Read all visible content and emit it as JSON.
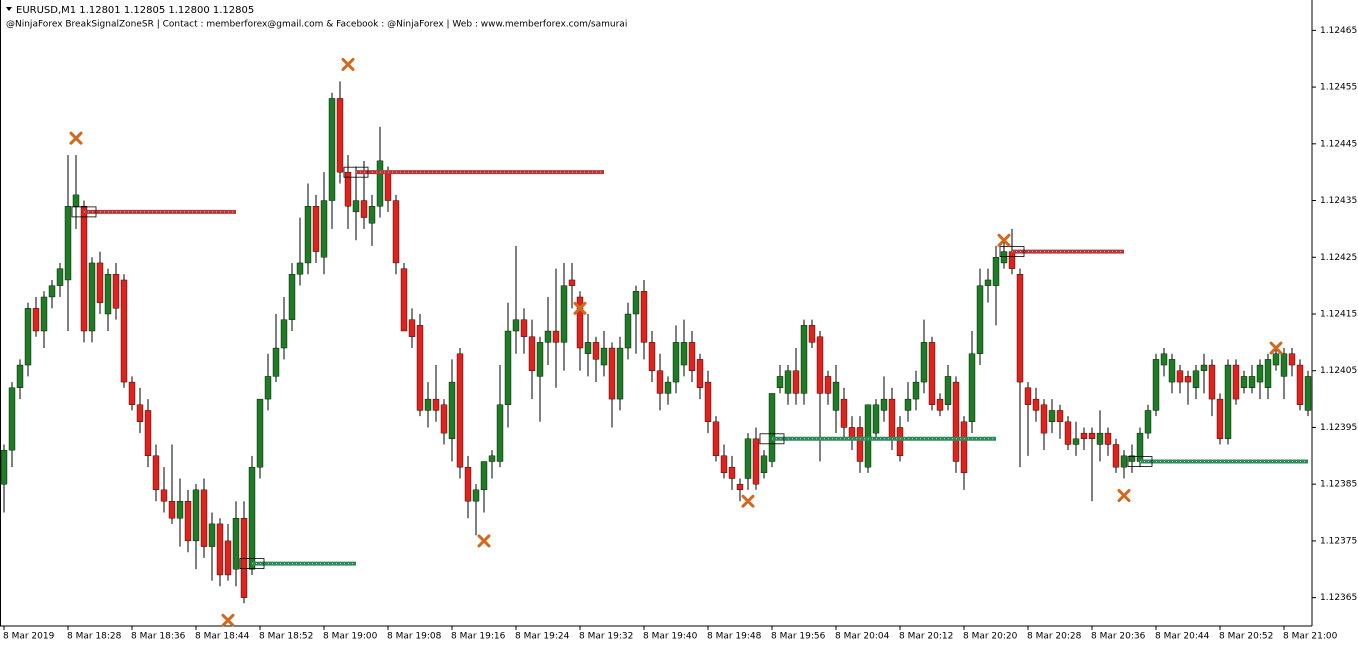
{
  "chart_data": {
    "type": "candlestick",
    "title": "EURUSD,M1  1.12801 1.12805 1.12800 1.12805",
    "subtitle": "@NinjaForex BreakSignalZoneSR | Contact : memberforex@gmail.com & Facebook : @NinjaForex | Web : www.memberforex.com/samurai",
    "categories": [
      "8 Mar 2019",
      null,
      null,
      null,
      null,
      null,
      null,
      null,
      "8 Mar 18:28",
      null,
      null,
      null,
      null,
      null,
      null,
      null,
      "8 Mar 18:36",
      null,
      null,
      null,
      null,
      null,
      null,
      null,
      "8 Mar 18:44",
      null,
      null,
      null,
      null,
      null,
      null,
      null,
      "8 Mar 18:52",
      null,
      null,
      null,
      null,
      null,
      null,
      null,
      "8 Mar 19:00",
      null,
      null,
      null,
      null,
      null,
      null,
      null,
      "8 Mar 19:08",
      null,
      null,
      null,
      null,
      null,
      null,
      null,
      "8 Mar 19:16",
      null,
      null,
      null,
      null,
      null,
      null,
      null,
      "8 Mar 19:24",
      null,
      null,
      null,
      null,
      null,
      null,
      null,
      "8 Mar 19:32",
      null,
      null,
      null,
      null,
      null,
      null,
      null,
      "8 Mar 19:40",
      null,
      null,
      null,
      null,
      null,
      null,
      null,
      "8 Mar 19:48",
      null,
      null,
      null,
      null,
      null,
      null,
      null,
      "8 Mar 19:56",
      null,
      null,
      null,
      null,
      null,
      null,
      null,
      "8 Mar 20:04",
      null,
      null,
      null,
      null,
      null,
      null,
      null,
      "8 Mar 20:12",
      null,
      null,
      null,
      null,
      null,
      null,
      null,
      "8 Mar 20:20",
      null,
      null,
      null,
      null,
      null,
      null,
      null,
      "8 Mar 20:28",
      null,
      null,
      null,
      null,
      null,
      null,
      null,
      "8 Mar 20:36",
      null,
      null,
      null,
      null,
      null,
      null,
      null,
      "8 Mar 20:44",
      null,
      null,
      null,
      null,
      null,
      null,
      null,
      "8 Mar 20:52",
      null,
      null,
      null,
      null,
      null,
      null,
      null,
      "8 Mar 21:00",
      null,
      null,
      null
    ],
    "open": [
      1.12385,
      1.12391,
      1.12402,
      1.12406,
      1.12416,
      1.12412,
      1.12418,
      1.1242,
      1.12421,
      1.12434,
      1.12434,
      1.12412,
      1.12424,
      1.12415,
      1.12422,
      1.12421,
      1.12403,
      1.12399,
      1.12398,
      1.1239,
      1.12384,
      1.12382,
      1.12379,
      1.12382,
      1.12375,
      1.12384,
      1.12374,
      1.12378,
      1.12375,
      1.1237,
      1.12379,
      1.1237,
      1.12388,
      1.124,
      1.12404,
      1.12409,
      1.12414,
      1.12422,
      1.12424,
      1.12434,
      1.12425,
      1.12435,
      1.12453,
      1.1244,
      1.12433,
      1.12435,
      1.12431,
      1.12434,
      1.1244,
      1.12435,
      1.12423,
      1.12414,
      1.12413,
      1.12398,
      1.124,
      1.12399,
      1.12393,
      1.12408,
      1.12388,
      1.12382,
      1.12384,
      1.12389,
      1.12389,
      1.12399,
      1.12412,
      1.12414,
      1.12411,
      1.12404,
      1.1241,
      1.12412,
      1.1241,
      1.12421,
      1.12418,
      1.12408,
      1.1241,
      1.12406,
      1.12409,
      1.124,
      1.12409,
      1.12415,
      1.12419,
      1.1241,
      1.12405,
      1.12401,
      1.12403,
      1.12406,
      1.1241,
      1.12407,
      1.12403,
      1.12396,
      1.1239,
      1.12388,
      1.12385,
      1.12386,
      1.12393,
      1.12387,
      1.12389,
      1.12402,
      1.12401,
      1.12405,
      1.12401,
      1.12413,
      1.12411,
      1.12404,
      1.12398,
      1.124,
      1.12395,
      1.12395,
      1.12388,
      1.12394,
      1.12398,
      1.124,
      1.12395,
      1.12398,
      1.124,
      1.12403,
      1.1241,
      1.124,
      1.12399,
      1.12403,
      1.12396,
      1.12396,
      1.12408,
      1.1242,
      1.1242,
      1.12424,
      1.12426,
      1.12422,
      1.12402,
      1.124,
      1.12399,
      1.12396,
      1.12398,
      1.12396,
      1.12392,
      1.12394,
      1.12394,
      1.12392,
      1.12394,
      1.12392,
      1.12388,
      1.12389,
      1.12389,
      1.12394,
      1.12398,
      1.12406,
      1.12403,
      1.12405,
      1.12404,
      1.12402,
      1.12405,
      1.12406,
      1.124,
      1.12393,
      1.12406,
      1.12402,
      1.12402,
      1.12403,
      1.12402,
      1.12406,
      1.12404,
      1.12408,
      1.12406,
      1.12398
    ],
    "high": [
      1.12392,
      1.12403,
      1.12407,
      1.12417,
      1.12418,
      1.12419,
      1.12421,
      1.12424,
      1.12443,
      1.12443,
      1.12435,
      1.12425,
      1.12426,
      1.12423,
      1.12424,
      1.12422,
      1.12404,
      1.12402,
      1.124,
      1.12392,
      1.12388,
      1.12392,
      1.12386,
      1.12384,
      1.12385,
      1.12386,
      1.1238,
      1.12379,
      1.12378,
      1.12382,
      1.12382,
      1.1239,
      1.124,
      1.12408,
      1.12415,
      1.12418,
      1.12424,
      1.12432,
      1.12438,
      1.12436,
      1.1244,
      1.12454,
      1.12456,
      1.12443,
      1.12441,
      1.12442,
      1.12436,
      1.12448,
      1.12441,
      1.12436,
      1.12424,
      1.12416,
      1.12415,
      1.12403,
      1.12406,
      1.124,
      1.12407,
      1.12409,
      1.1239,
      1.12385,
      1.12389,
      1.12391,
      1.12406,
      1.12417,
      1.12427,
      1.12416,
      1.12414,
      1.12411,
      1.12418,
      1.12423,
      1.12424,
      1.12424,
      1.12419,
      1.12415,
      1.12411,
      1.12412,
      1.1241,
      1.12411,
      1.12417,
      1.1242,
      1.12421,
      1.12412,
      1.12408,
      1.12404,
      1.12413,
      1.12414,
      1.12412,
      1.12408,
      1.12405,
      1.12397,
      1.12392,
      1.1239,
      1.12386,
      1.12394,
      1.12395,
      1.12391,
      1.12401,
      1.12406,
      1.12406,
      1.12409,
      1.12414,
      1.12414,
      1.12412,
      1.12405,
      1.12406,
      1.12402,
      1.12397,
      1.12397,
      1.12399,
      1.124,
      1.12404,
      1.12402,
      1.12397,
      1.12403,
      1.12405,
      1.12414,
      1.12411,
      1.12401,
      1.12406,
      1.12404,
      1.12397,
      1.12412,
      1.12423,
      1.12423,
      1.12427,
      1.12428,
      1.1243,
      1.12423,
      1.12403,
      1.12402,
      1.124,
      1.124,
      1.12399,
      1.12397,
      1.12396,
      1.12395,
      1.12395,
      1.12398,
      1.12395,
      1.12393,
      1.12391,
      1.12392,
      1.12395,
      1.12399,
      1.12408,
      1.12409,
      1.12408,
      1.12406,
      1.12405,
      1.12406,
      1.12408,
      1.12407,
      1.12401,
      1.12407,
      1.12407,
      1.12405,
      1.12406,
      1.12407,
      1.12408,
      1.12409,
      1.12409,
      1.12409,
      1.12407,
      1.12405
    ],
    "low": [
      1.1238,
      1.12388,
      1.124,
      1.12404,
      1.12411,
      1.12409,
      1.12416,
      1.12418,
      1.12412,
      1.1243,
      1.1241,
      1.1241,
      1.12415,
      1.12412,
      1.12414,
      1.12402,
      1.12398,
      1.12394,
      1.12388,
      1.12382,
      1.1238,
      1.12378,
      1.12374,
      1.12373,
      1.1237,
      1.12372,
      1.12368,
      1.12367,
      1.12368,
      1.12367,
      1.12364,
      1.12369,
      1.12386,
      1.12398,
      1.12403,
      1.12407,
      1.12412,
      1.1242,
      1.12422,
      1.12424,
      1.12422,
      1.1243,
      1.12438,
      1.1243,
      1.12428,
      1.1243,
      1.12427,
      1.12432,
      1.12433,
      1.12422,
      1.12412,
      1.12409,
      1.12397,
      1.12395,
      1.12396,
      1.12392,
      1.12389,
      1.12386,
      1.12379,
      1.12376,
      1.1238,
      1.12386,
      1.12388,
      1.12395,
      1.12408,
      1.12408,
      1.124,
      1.12396,
      1.12406,
      1.12402,
      1.12405,
      1.12416,
      1.12405,
      1.12404,
      1.12403,
      1.12404,
      1.12395,
      1.12398,
      1.12407,
      1.12408,
      1.12407,
      1.12403,
      1.12398,
      1.12399,
      1.12401,
      1.12404,
      1.12403,
      1.124,
      1.12394,
      1.12389,
      1.12386,
      1.12384,
      1.12382,
      1.12384,
      1.12384,
      1.12386,
      1.12388,
      1.12401,
      1.12399,
      1.12399,
      1.12399,
      1.12409,
      1.12389,
      1.12399,
      1.12394,
      1.12393,
      1.12391,
      1.12387,
      1.12387,
      1.12393,
      1.12396,
      1.12391,
      1.12389,
      1.12396,
      1.12398,
      1.12401,
      1.12398,
      1.12397,
      1.12398,
      1.12387,
      1.12384,
      1.12394,
      1.12406,
      1.12417,
      1.12413,
      1.12423,
      1.12422,
      1.12388,
      1.1239,
      1.12396,
      1.12391,
      1.12394,
      1.12393,
      1.12391,
      1.1239,
      1.12391,
      1.12382,
      1.12389,
      1.1239,
      1.12387,
      1.12386,
      1.12387,
      1.12388,
      1.12393,
      1.12397,
      1.12404,
      1.12401,
      1.12401,
      1.12399,
      1.124,
      1.12401,
      1.12397,
      1.12392,
      1.12392,
      1.12399,
      1.12401,
      1.12401,
      1.124,
      1.124,
      1.12405,
      1.124,
      1.12404,
      1.12398,
      1.12397
    ],
    "close": [
      1.12391,
      1.12402,
      1.12406,
      1.12416,
      1.12412,
      1.12418,
      1.1242,
      1.12423,
      1.12434,
      1.12436,
      1.12412,
      1.12424,
      1.12417,
      1.12422,
      1.12416,
      1.12403,
      1.12399,
      1.12396,
      1.1239,
      1.12384,
      1.12382,
      1.12379,
      1.12382,
      1.12375,
      1.12384,
      1.12374,
      1.12378,
      1.12369,
      1.12369,
      1.12379,
      1.12365,
      1.12388,
      1.124,
      1.12404,
      1.12409,
      1.12414,
      1.12422,
      1.12424,
      1.12434,
      1.12426,
      1.12435,
      1.12453,
      1.1244,
      1.12434,
      1.12435,
      1.12432,
      1.12434,
      1.12442,
      1.12435,
      1.12424,
      1.12412,
      1.12411,
      1.12398,
      1.124,
      1.12398,
      1.12394,
      1.12403,
      1.12388,
      1.12382,
      1.12384,
      1.12389,
      1.1239,
      1.12399,
      1.12412,
      1.12414,
      1.12411,
      1.12405,
      1.1241,
      1.12412,
      1.1241,
      1.1242,
      1.1242,
      1.12409,
      1.1241,
      1.12407,
      1.12409,
      1.124,
      1.12409,
      1.12415,
      1.12419,
      1.1241,
      1.12405,
      1.12401,
      1.12403,
      1.1241,
      1.1241,
      1.12405,
      1.12402,
      1.12396,
      1.1239,
      1.12387,
      1.12386,
      1.12384,
      1.12393,
      1.12385,
      1.1239,
      1.12401,
      1.12404,
      1.12405,
      1.12401,
      1.12413,
      1.1241,
      1.12401,
      1.12401,
      1.12403,
      1.12395,
      1.12393,
      1.12389,
      1.12399,
      1.12399,
      1.124,
      1.12393,
      1.1239,
      1.124,
      1.12403,
      1.1241,
      1.12399,
      1.12398,
      1.12404,
      1.12389,
      1.12387,
      1.12408,
      1.1242,
      1.12421,
      1.12425,
      1.12426,
      1.12423,
      1.12403,
      1.12399,
      1.12398,
      1.12394,
      1.12398,
      1.12396,
      1.12392,
      1.12393,
      1.12393,
      1.12393,
      1.12394,
      1.12392,
      1.12388,
      1.1239,
      1.1239,
      1.12394,
      1.12398,
      1.12407,
      1.12408,
      1.12407,
      1.12403,
      1.12403,
      1.12405,
      1.12406,
      1.124,
      1.12393,
      1.12406,
      1.124,
      1.12404,
      1.12404,
      1.12406,
      1.12407,
      1.12408,
      1.12408,
      1.12406,
      1.12399,
      1.12404
    ],
    "up_color": "#1c7d23",
    "down_color": "#e0211c",
    "ylim": [
      1.1236,
      1.1247
    ],
    "yticks": [
      1.12465,
      1.12455,
      1.12445,
      1.12435,
      1.12425,
      1.12415,
      1.12405,
      1.12395,
      1.12385,
      1.12375,
      1.12365
    ],
    "levels": [
      {
        "price": 1.12433,
        "from": 10,
        "to": 29,
        "color": "#b3383b"
      },
      {
        "price": 1.1244,
        "from": 44,
        "to": 75,
        "color": "#b3383b"
      },
      {
        "price": 1.12426,
        "from": 126,
        "to": 140,
        "color": "#b3383b"
      },
      {
        "price": 1.12371,
        "from": 31,
        "to": 44,
        "color": "#2e8a5a"
      },
      {
        "price": 1.12393,
        "from": 96,
        "to": 124,
        "color": "#2e8a5a"
      },
      {
        "price": 1.12389,
        "from": 142,
        "to": 163,
        "color": "#2e8a5a"
      }
    ],
    "signal_color": "#d2691e",
    "signals": [
      {
        "index": 9,
        "price": 1.12446
      },
      {
        "index": 43,
        "price": 1.12459
      },
      {
        "index": 60,
        "price": 1.12375
      },
      {
        "index": 28,
        "price": 1.12361
      },
      {
        "index": 72,
        "price": 1.12416
      },
      {
        "index": 93,
        "price": 1.12382
      },
      {
        "index": 125,
        "price": 1.12428
      },
      {
        "index": 140,
        "price": 1.12383
      },
      {
        "index": 159,
        "price": 1.12409
      }
    ]
  }
}
